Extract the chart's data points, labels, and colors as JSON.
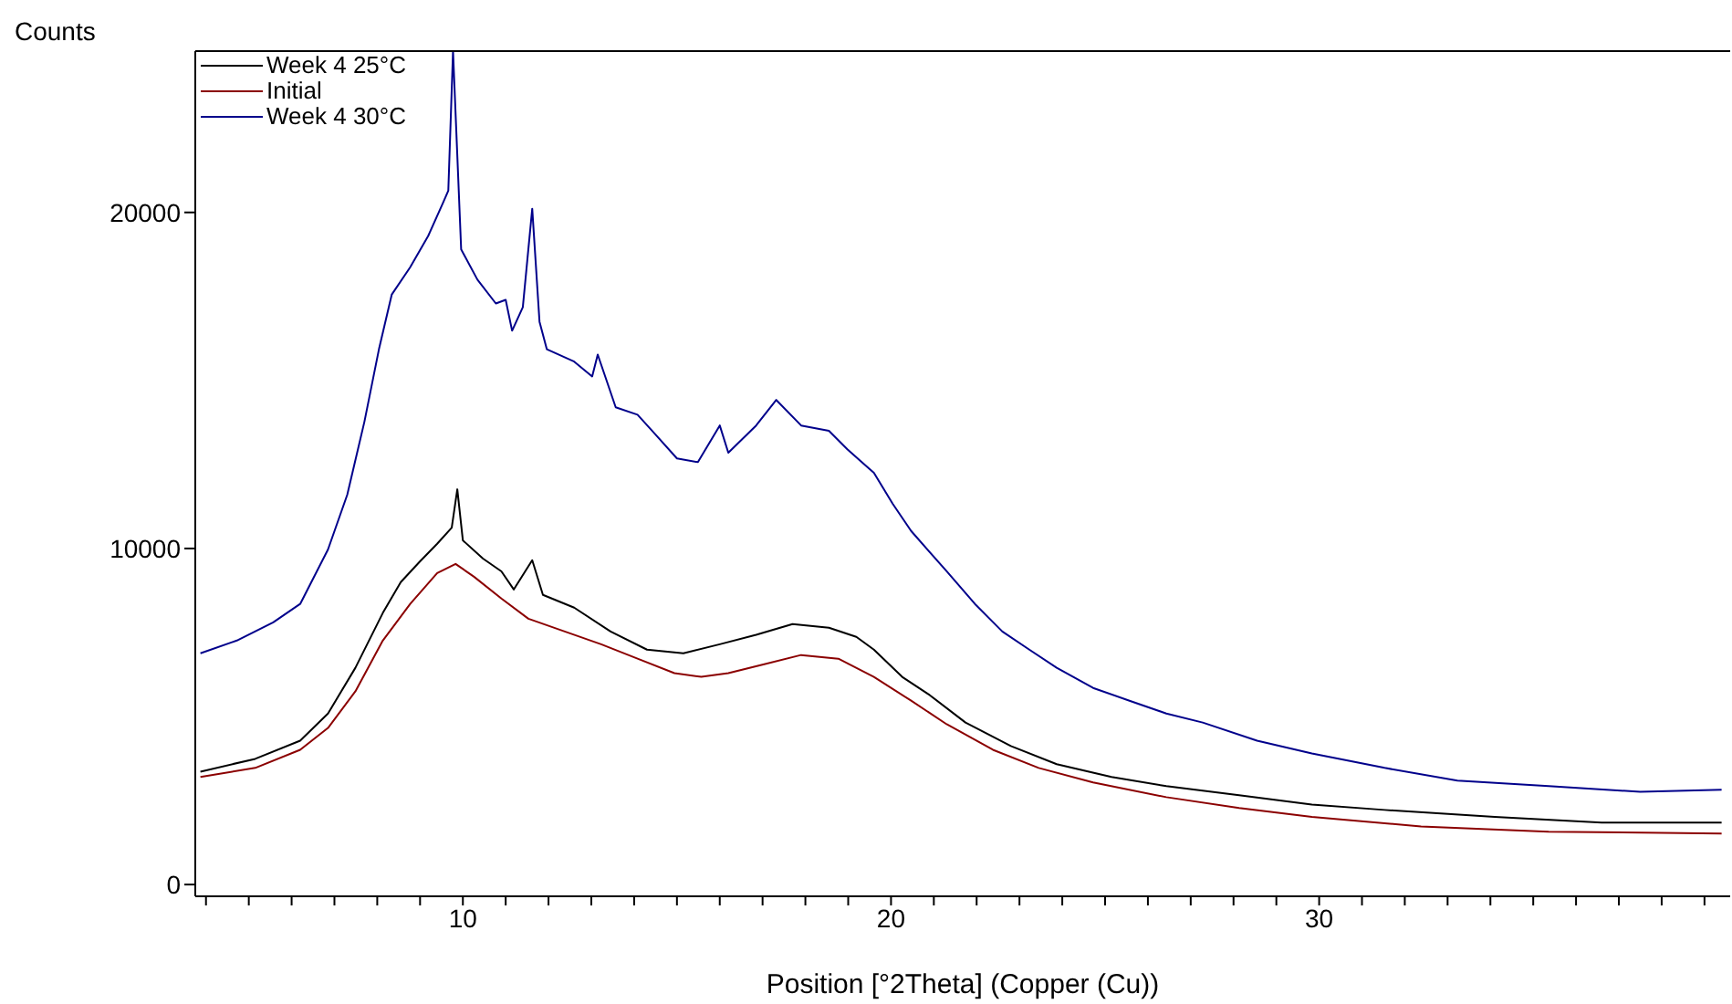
{
  "chart_data": {
    "type": "line",
    "xlabel": "Position [°2Theta] (Copper (Cu))",
    "ylabel": "Counts",
    "xlim": [
      3.75,
      39.6
    ],
    "ylim": [
      -350,
      24800
    ],
    "xticks": [
      {
        "value": 4,
        "label": null
      },
      {
        "value": 5,
        "label": null
      },
      {
        "value": 6,
        "label": null
      },
      {
        "value": 7,
        "label": null
      },
      {
        "value": 8,
        "label": null
      },
      {
        "value": 9,
        "label": null
      },
      10,
      {
        "value": 11,
        "label": null
      },
      {
        "value": 12,
        "label": null
      },
      {
        "value": 13,
        "label": null
      },
      {
        "value": 14,
        "label": null
      },
      {
        "value": 15,
        "label": null
      },
      {
        "value": 16,
        "label": null
      },
      {
        "value": 17,
        "label": null
      },
      {
        "value": 18,
        "label": null
      },
      {
        "value": 19,
        "label": null
      },
      20,
      {
        "value": 21,
        "label": null
      },
      {
        "value": 22,
        "label": null
      },
      {
        "value": 23,
        "label": null
      },
      {
        "value": 24,
        "label": null
      },
      {
        "value": 25,
        "label": null
      },
      {
        "value": 26,
        "label": null
      },
      {
        "value": 27,
        "label": null
      },
      {
        "value": 28,
        "label": null
      },
      {
        "value": 29,
        "label": null
      },
      30,
      {
        "value": 31,
        "label": null
      },
      {
        "value": 32,
        "label": null
      },
      {
        "value": 33,
        "label": null
      },
      {
        "value": 34,
        "label": null
      },
      {
        "value": 35,
        "label": null
      },
      {
        "value": 36,
        "label": null
      },
      {
        "value": 37,
        "label": null
      },
      {
        "value": 38,
        "label": null
      },
      {
        "value": 39,
        "label": null
      }
    ],
    "yticks": [
      0,
      10000,
      20000
    ],
    "legend": "top left",
    "marker": "none",
    "line_style": "solid",
    "series": [
      {
        "name": "Week 4 25°C",
        "color": "#000000",
        "x": [
          3.87,
          5.15,
          6.2,
          6.85,
          7.49,
          8.13,
          8.55,
          8.98,
          9.4,
          9.74,
          9.87,
          10.0,
          10.47,
          10.9,
          11.19,
          11.62,
          11.87,
          12.6,
          13.45,
          14.3,
          15.15,
          16.0,
          16.85,
          17.7,
          18.55,
          19.19,
          19.6,
          20.26,
          20.9,
          21.74,
          22.8,
          23.87,
          25.15,
          26.43,
          28.13,
          29.83,
          31.53,
          34.1,
          36.6,
          39.4
        ],
        "values": [
          3360,
          3740,
          4280,
          5090,
          6450,
          8080,
          9000,
          9590,
          10140,
          10620,
          11760,
          10240,
          9700,
          9320,
          8780,
          9650,
          8620,
          8240,
          7530,
          6990,
          6880,
          7150,
          7430,
          7750,
          7640,
          7370,
          6990,
          6180,
          5640,
          4820,
          4120,
          3580,
          3200,
          2930,
          2660,
          2380,
          2220,
          2010,
          1840,
          1840
        ]
      },
      {
        "name": "Initial",
        "color": "#8b0000",
        "x": [
          3.87,
          5.15,
          6.2,
          6.85,
          7.49,
          8.13,
          8.77,
          9.4,
          9.83,
          10.26,
          10.9,
          11.53,
          12.38,
          13.23,
          14.08,
          14.94,
          15.57,
          16.2,
          17.06,
          17.9,
          18.77,
          19.6,
          20.47,
          21.3,
          22.38,
          23.45,
          24.72,
          26.43,
          28.13,
          29.83,
          32.38,
          35.36,
          39.4
        ],
        "values": [
          3200,
          3470,
          4010,
          4660,
          5750,
          7260,
          8350,
          9270,
          9540,
          9160,
          8510,
          7910,
          7530,
          7150,
          6720,
          6290,
          6180,
          6290,
          6560,
          6830,
          6720,
          6180,
          5470,
          4770,
          4010,
          3470,
          3040,
          2600,
          2280,
          2010,
          1730,
          1570,
          1520
        ]
      },
      {
        "name": "Week 4 30°C",
        "color": "#00008b",
        "x": [
          3.87,
          4.72,
          5.57,
          6.2,
          6.85,
          7.3,
          7.7,
          8.04,
          8.34,
          8.77,
          9.19,
          9.53,
          9.66,
          9.77,
          9.96,
          10.34,
          10.77,
          11.0,
          11.15,
          11.4,
          11.62,
          11.79,
          11.96,
          12.6,
          13.02,
          13.15,
          13.57,
          14.08,
          14.5,
          15.0,
          15.49,
          16.0,
          16.2,
          16.85,
          17.32,
          17.9,
          18.55,
          18.98,
          19.6,
          20.04,
          20.47,
          21.3,
          21.96,
          22.6,
          23.23,
          23.87,
          24.72,
          25.57,
          26.43,
          27.28,
          28.55,
          29.83,
          31.53,
          33.23,
          35.36,
          37.5,
          39.4
        ],
        "values": [
          6880,
          7260,
          7800,
          8350,
          9970,
          11600,
          13770,
          15930,
          17560,
          18370,
          19300,
          20270,
          20650,
          24800,
          18900,
          18000,
          17290,
          17400,
          16480,
          17180,
          20110,
          16750,
          15930,
          15560,
          15120,
          15770,
          14200,
          13980,
          13390,
          12680,
          12570,
          13660,
          12850,
          13660,
          14420,
          13660,
          13500,
          12950,
          12250,
          11330,
          10520,
          9320,
          8350,
          7530,
          6990,
          6450,
          5850,
          5470,
          5090,
          4820,
          4280,
          3900,
          3470,
          3090,
          2930,
          2760,
          2820
        ]
      }
    ]
  }
}
